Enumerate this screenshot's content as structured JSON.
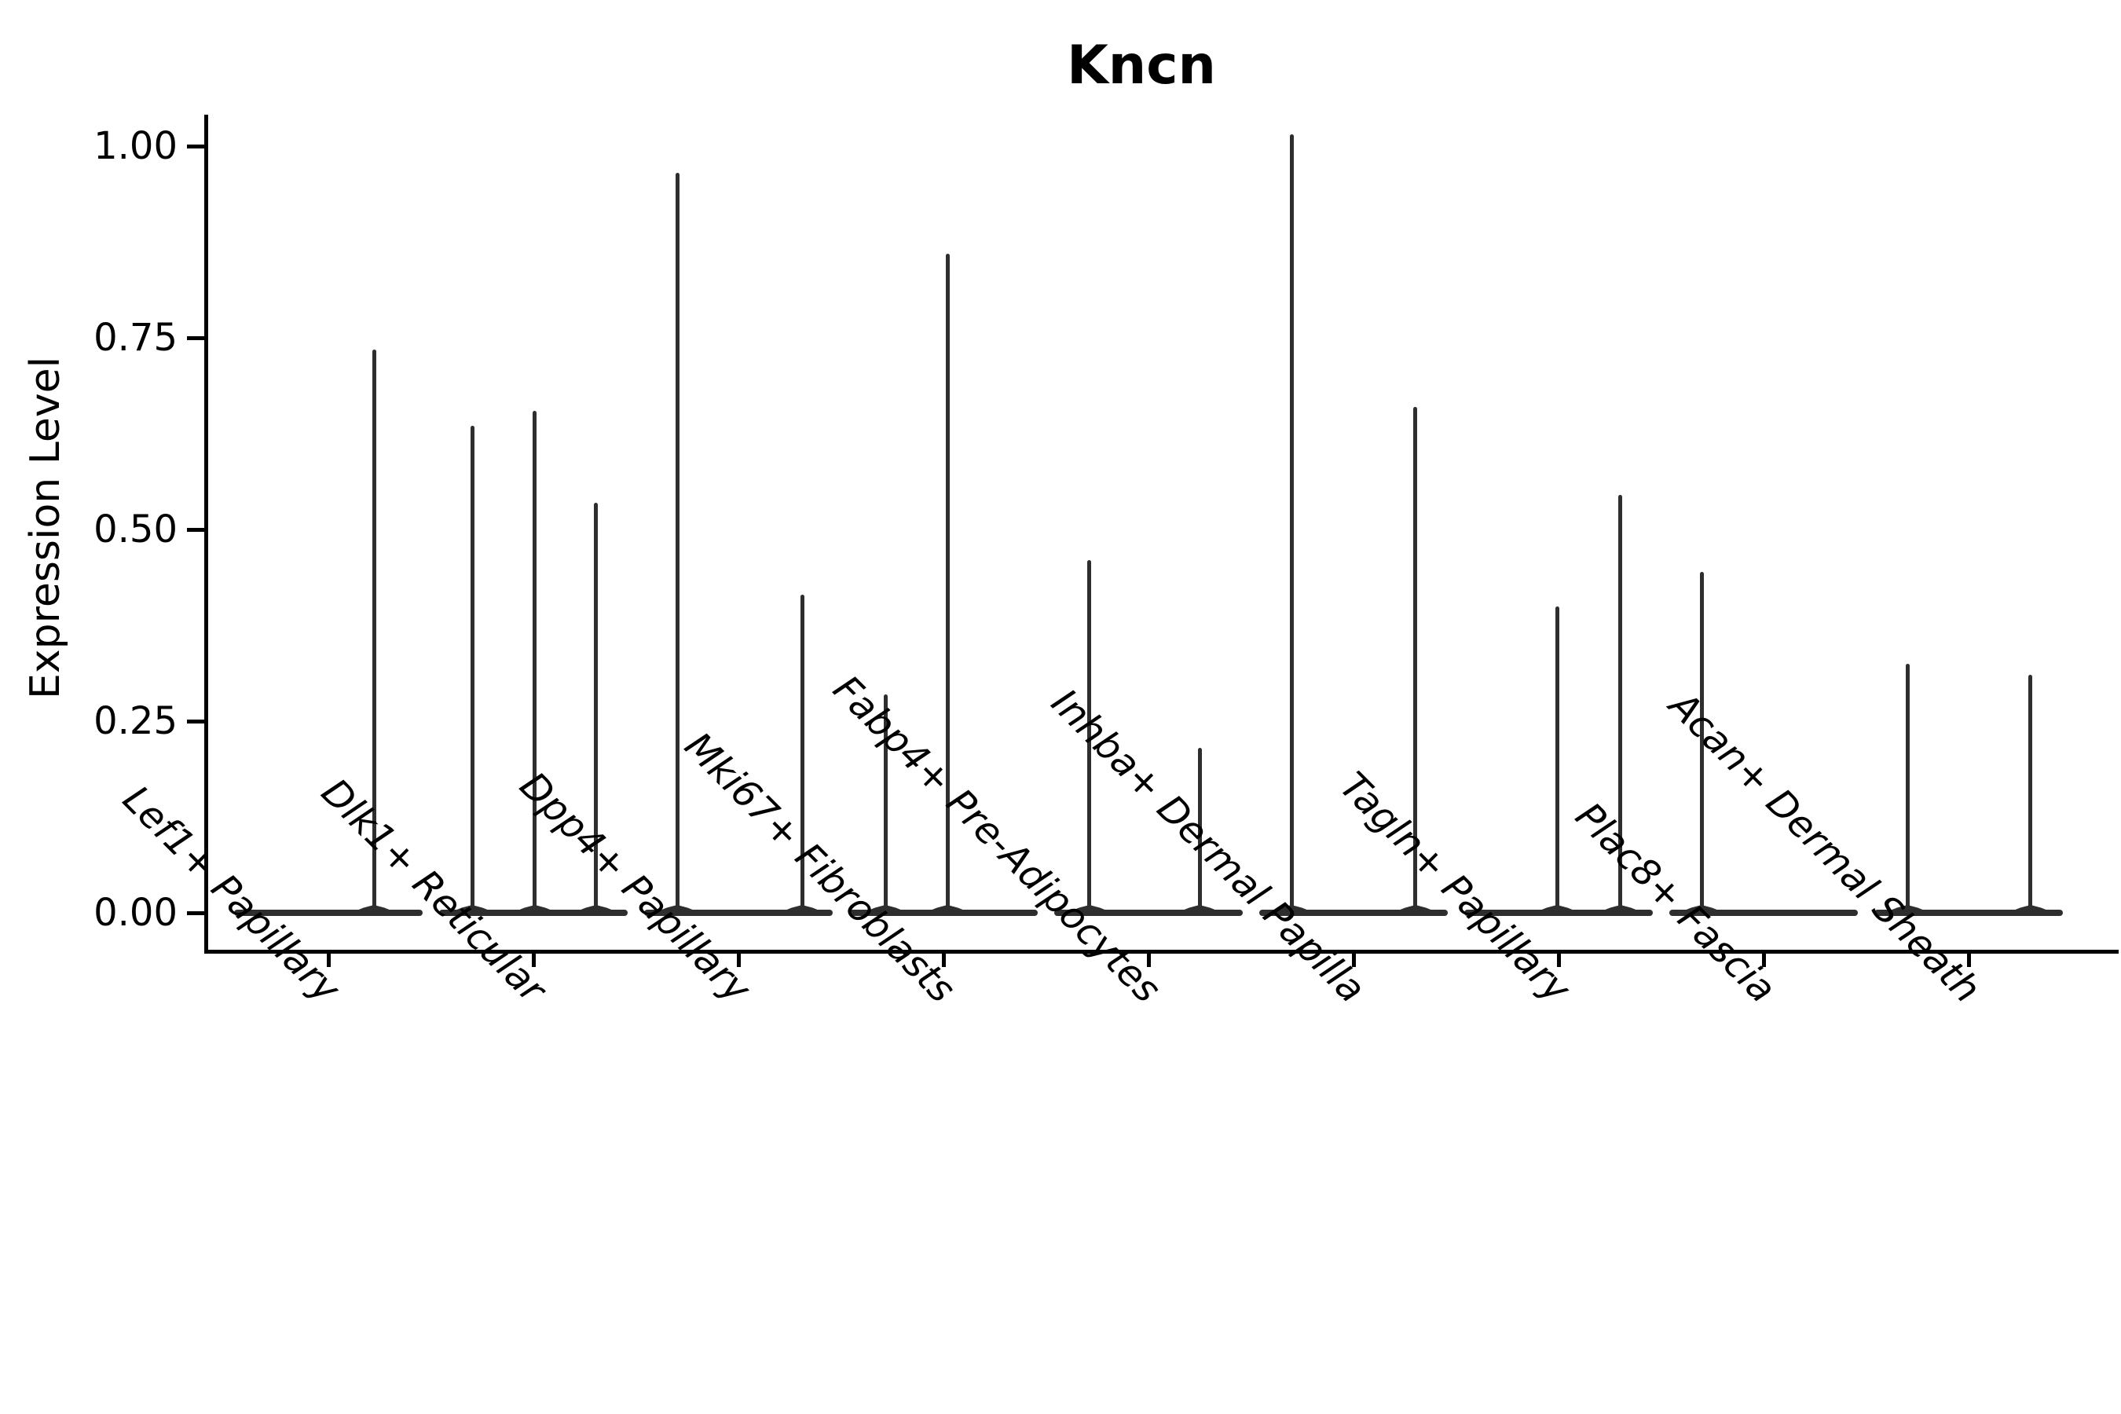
{
  "title": "Kncn",
  "y_axis": {
    "label": "Expression Level",
    "tick_labels": [
      "0.00",
      "0.25",
      "0.50",
      "0.75",
      "1.00"
    ]
  },
  "style": {
    "background": "#ffffff",
    "ink": "#2e2e2e",
    "axis_color": "#000000"
  },
  "chart_data": {
    "type": "violin",
    "title": "Kncn",
    "ylabel": "Expression Level",
    "xlabel": "",
    "ylim": [
      -0.05,
      1.06
    ],
    "yticks": [
      0.0,
      0.25,
      0.5,
      0.75,
      1.0
    ],
    "grid": false,
    "legend": "none",
    "violin_style": "density collapsed flat at 0 with thin vertical outlier spikes",
    "categories": [
      "Lef1+ Papillary",
      "Dlk1+ Reticular",
      "Dpp4+ Papillary",
      "Mki67+ Fibroblasts",
      "Fabp4+ Pre-Adipocytes",
      "Inhba+ Dermal Papilla",
      "Tagln+ Papillary",
      "Plac8+ Fascia",
      "Acan+ Dermal Sheath"
    ],
    "series": [
      {
        "category": "Lef1+ Papillary",
        "baseline_value": 0,
        "spikes": [
          {
            "x_offset_frac": 0.242,
            "value": 0.735
          }
        ]
      },
      {
        "category": "Dlk1+ Reticular",
        "baseline_value": 0,
        "spikes": [
          {
            "x_offset_frac": -0.325,
            "value": 0.635
          },
          {
            "x_offset_frac": 0.008,
            "value": 0.655
          },
          {
            "x_offset_frac": 0.333,
            "value": 0.535
          }
        ]
      },
      {
        "category": "Dpp4+ Papillary",
        "baseline_value": 0,
        "spikes": [
          {
            "x_offset_frac": -0.325,
            "value": 0.965
          },
          {
            "x_offset_frac": 0.338,
            "value": 0.415
          }
        ]
      },
      {
        "category": "Mki67+ Fibroblasts",
        "baseline_value": 0,
        "spikes": [
          {
            "x_offset_frac": -0.308,
            "value": 0.285
          },
          {
            "x_offset_frac": 0.021,
            "value": 0.86
          }
        ]
      },
      {
        "category": "Fabp4+ Pre-Adipocytes",
        "baseline_value": 0,
        "spikes": [
          {
            "x_offset_frac": -0.313,
            "value": 0.46
          },
          {
            "x_offset_frac": 0.271,
            "value": 0.215
          }
        ]
      },
      {
        "category": "Inhba+ Dermal Papilla",
        "baseline_value": 0,
        "spikes": [
          {
            "x_offset_frac": -0.329,
            "value": 1.015
          },
          {
            "x_offset_frac": 0.329,
            "value": 0.66
          }
        ]
      },
      {
        "category": "Tagln+ Papillary",
        "baseline_value": 0,
        "spikes": [
          {
            "x_offset_frac": -0.008,
            "value": 0.4
          },
          {
            "x_offset_frac": 0.329,
            "value": 0.545
          }
        ]
      },
      {
        "category": "Plac8+ Fascia",
        "baseline_value": 0,
        "spikes": [
          {
            "x_offset_frac": -0.329,
            "value": 0.445
          }
        ]
      },
      {
        "category": "Acan+ Dermal Sheath",
        "baseline_value": 0,
        "spikes": [
          {
            "x_offset_frac": -0.325,
            "value": 0.325
          },
          {
            "x_offset_frac": 0.329,
            "value": 0.31
          }
        ]
      }
    ]
  }
}
